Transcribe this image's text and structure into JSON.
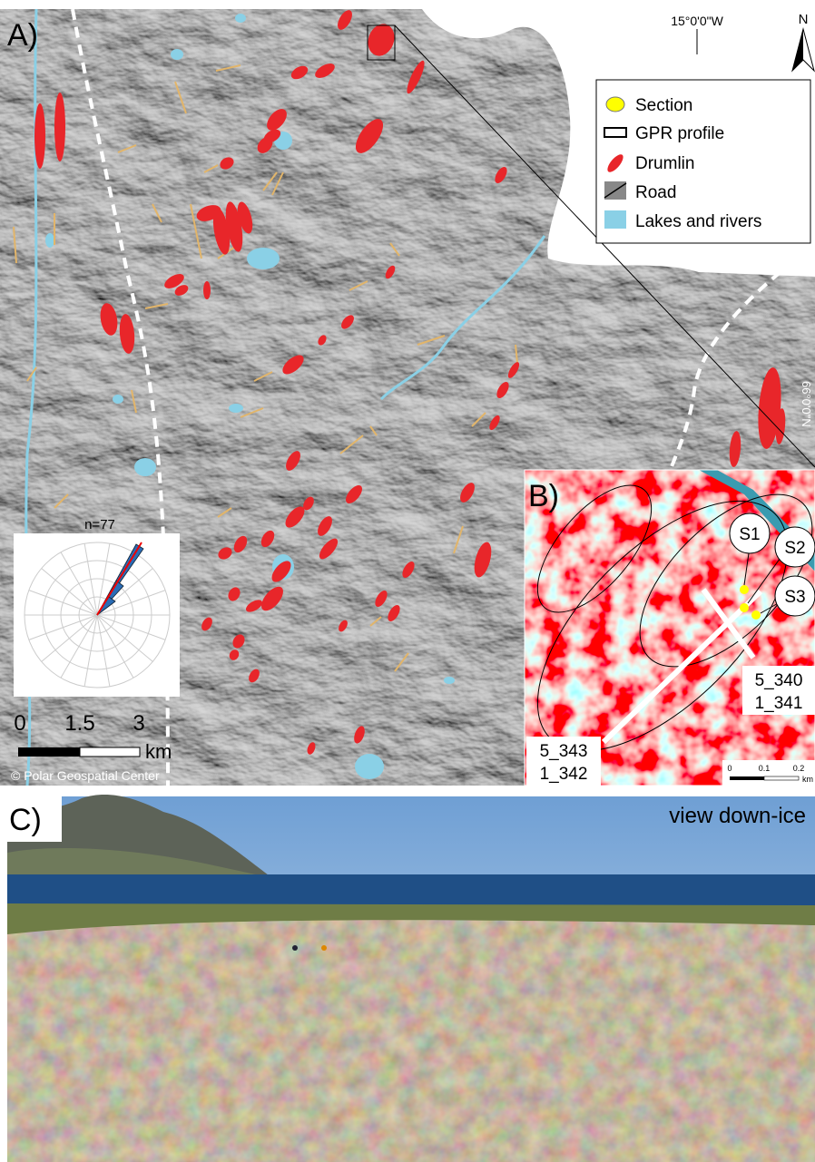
{
  "panel_a": {
    "label": "A)",
    "longitude_label": "15°0'0\"W",
    "north_label": "N",
    "latitude_label": "66°0'0\"N",
    "legend": [
      "Section",
      "GPR profile",
      "Drumlin",
      "Road",
      "Lakes and rivers"
    ],
    "rose_count": "n=77",
    "scale_labels": [
      "0",
      "1.5",
      "3"
    ],
    "scale_unit": "km",
    "credit": "© Polar Geospatial Center"
  },
  "panel_b": {
    "label": "B)",
    "sections": [
      "S1",
      "S2",
      "S3"
    ],
    "profile_labels": [
      [
        "5_340",
        "1_341"
      ],
      [
        "5_343",
        "1_342"
      ]
    ],
    "scale_labels": [
      "0",
      "0.1",
      "0.2"
    ],
    "scale_unit": "km"
  },
  "panel_c": {
    "label": "C)",
    "caption": "view down-ice"
  }
}
